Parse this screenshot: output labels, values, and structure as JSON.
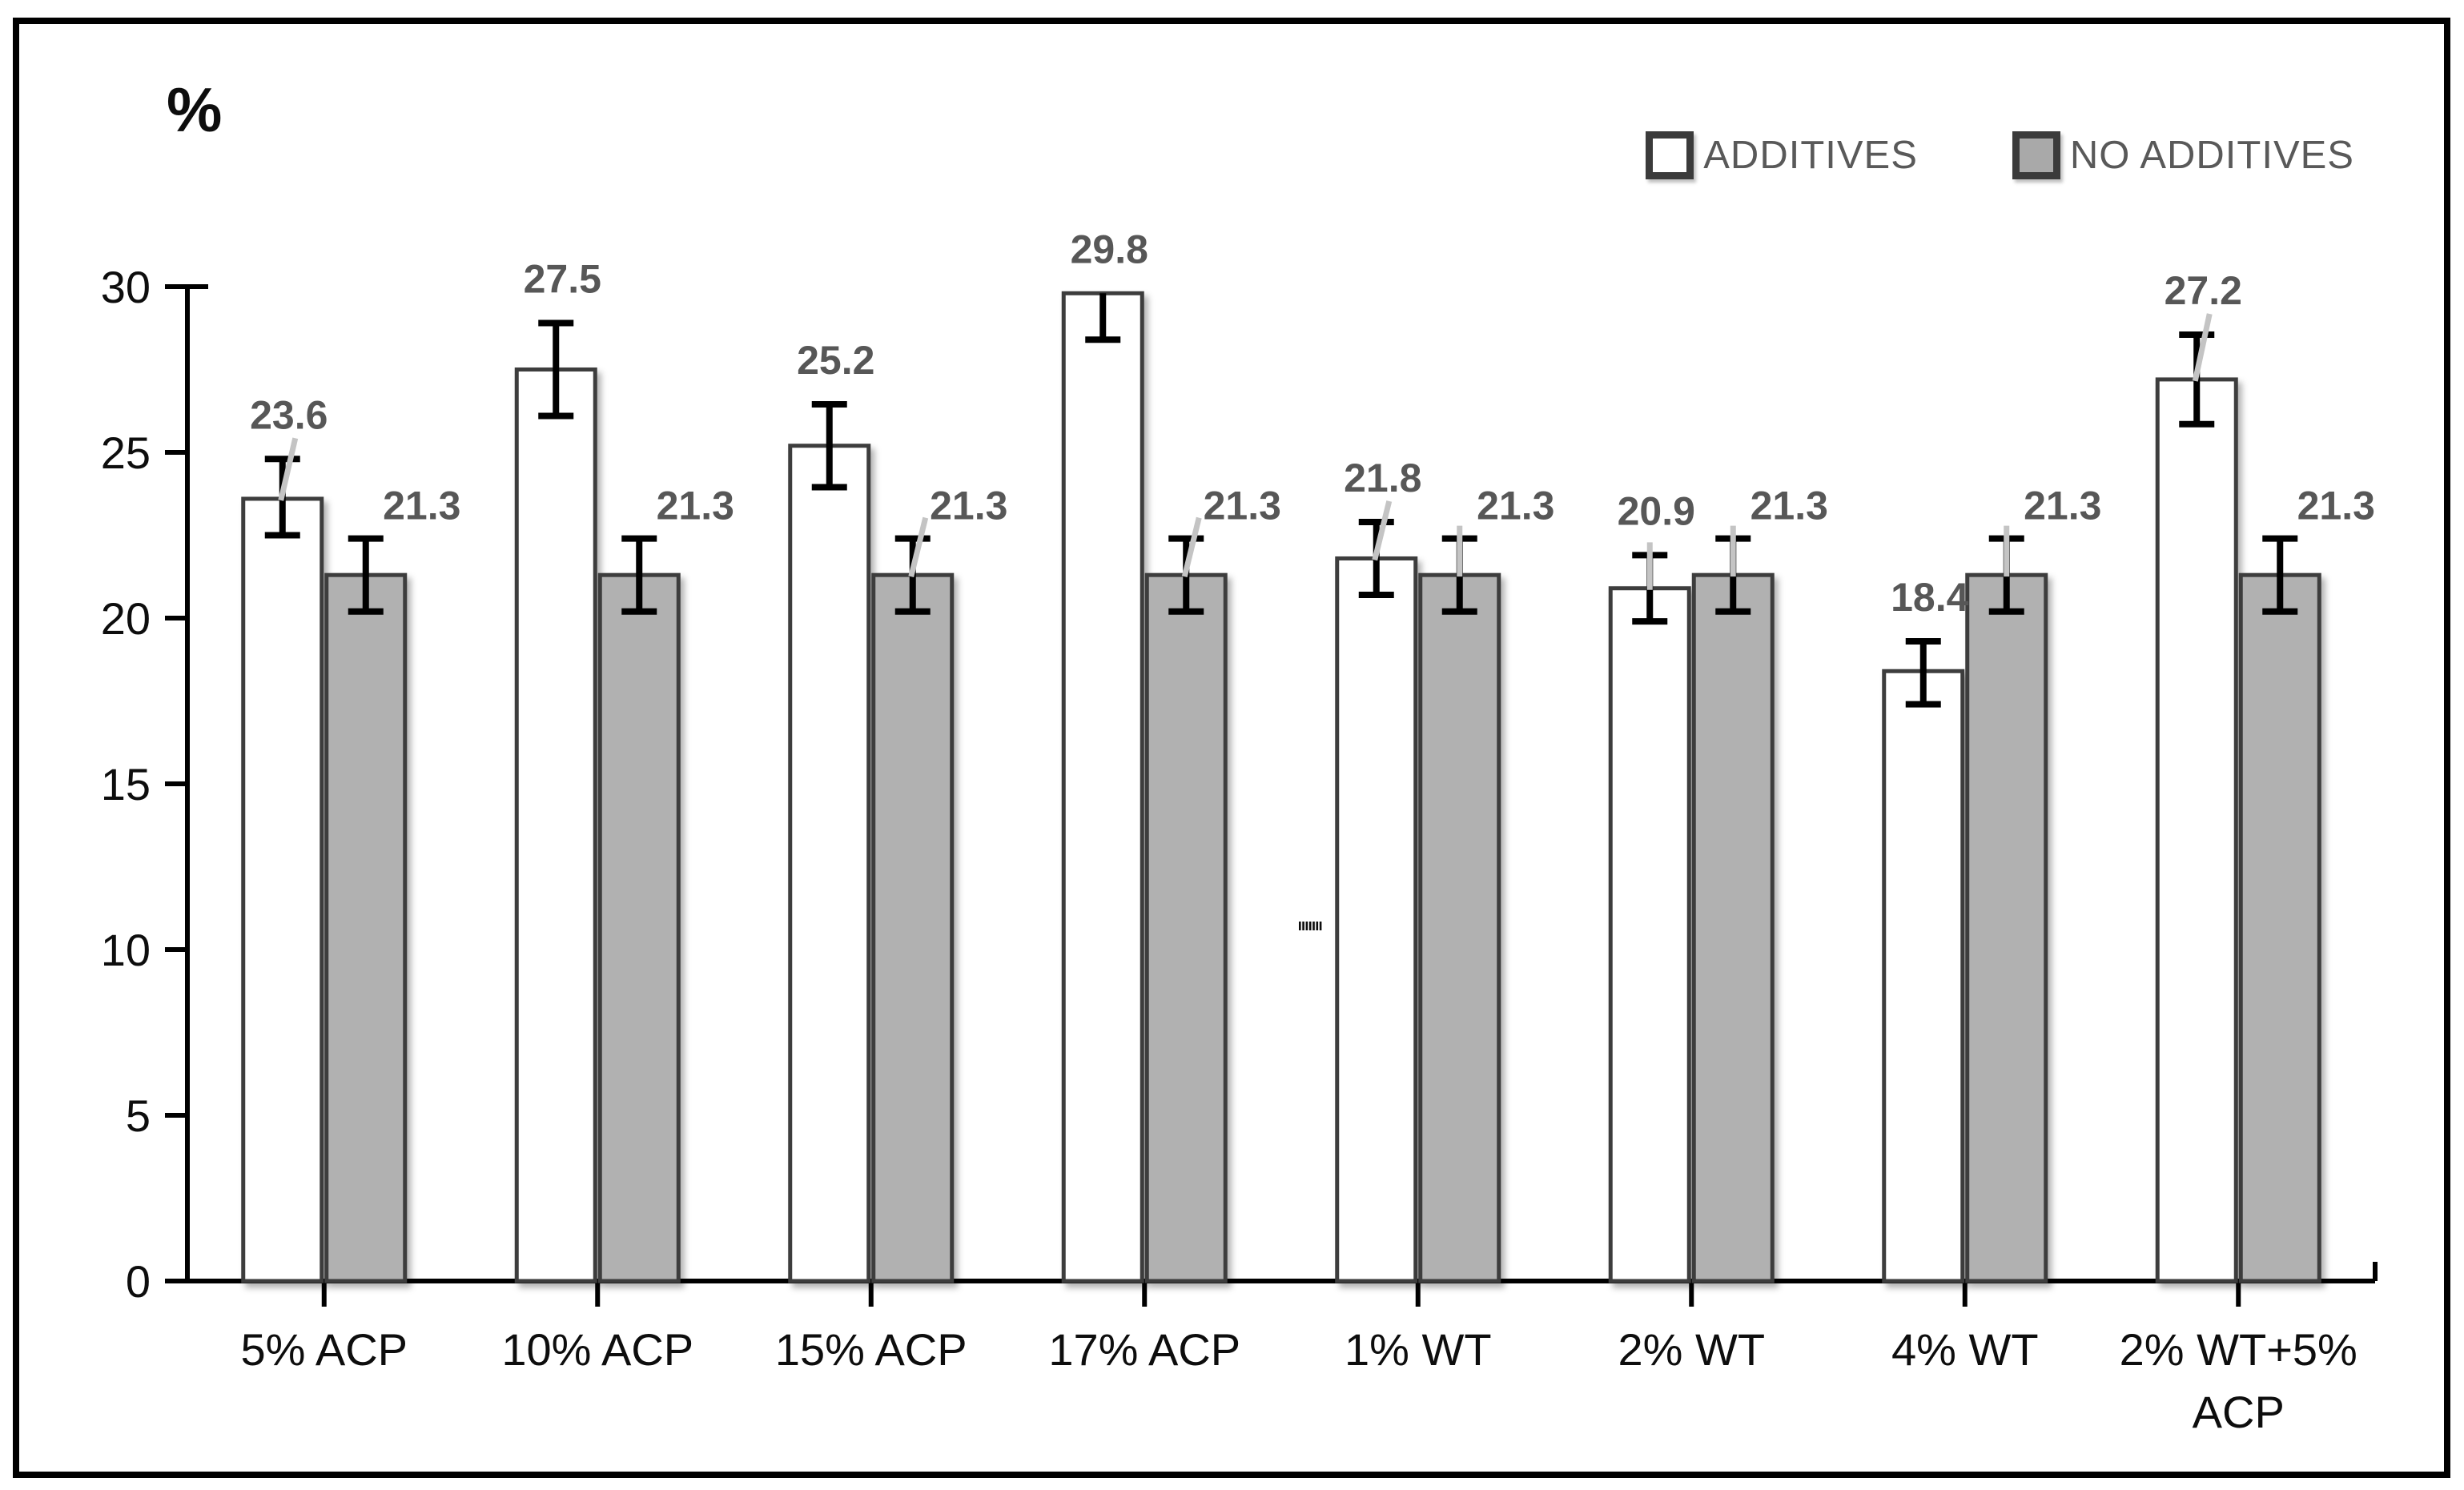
{
  "figure": {
    "y_axis_unit_label": "%",
    "border_color": "#000000"
  },
  "legend": {
    "items": [
      {
        "label": "ADDITIVES",
        "swatch_fill": "#ffffff"
      },
      {
        "label": "NO ADDITIVES",
        "swatch_fill": "#a9a9a9"
      }
    ]
  },
  "chart_data": {
    "type": "bar",
    "title": "",
    "xlabel": "",
    "ylabel": "%",
    "ylim": [
      0,
      30
    ],
    "yticks": [
      0,
      5,
      10,
      15,
      20,
      25,
      30
    ],
    "grid": false,
    "legend_position": "top-right",
    "categories": [
      "5% ACP",
      "10% ACP",
      "15% ACP",
      "17% ACP",
      "1% WT",
      "2% WT",
      "4% WT",
      "2% WT+5% ACP"
    ],
    "category_display_lines": [
      [
        "5% ACP"
      ],
      [
        "10% ACP"
      ],
      [
        "15% ACP"
      ],
      [
        "17% ACP"
      ],
      [
        "1% WT"
      ],
      [
        "2% WT"
      ],
      [
        "4% WT"
      ],
      [
        "2% WT+5%",
        "ACP"
      ]
    ],
    "series": [
      {
        "name": "ADDITIVES",
        "fill": "#ffffff",
        "values": [
          23.6,
          27.5,
          25.2,
          29.8,
          21.8,
          20.9,
          18.4,
          27.2
        ],
        "err_up": [
          1.2,
          1.4,
          1.25,
          0.0,
          1.1,
          1.0,
          0.9,
          1.35
        ],
        "err_down": [
          1.1,
          1.4,
          1.25,
          1.4,
          1.1,
          1.0,
          1.0,
          1.35
        ],
        "leaders": [
          "diag",
          "none",
          "none",
          "none",
          "diag",
          "vert",
          "none",
          "diag"
        ]
      },
      {
        "name": "NO ADDITIVES",
        "fill": "#b1b1b1",
        "values": [
          21.3,
          21.3,
          21.3,
          21.3,
          21.3,
          21.3,
          21.3,
          21.3
        ],
        "err_up": [
          1.1,
          1.1,
          1.1,
          1.1,
          1.1,
          1.1,
          1.1,
          1.1
        ],
        "err_down": [
          1.1,
          1.1,
          1.1,
          1.1,
          1.1,
          1.1,
          1.1,
          1.1
        ],
        "leaders": [
          "none",
          "none",
          "diag",
          "diag",
          "vert",
          "vert",
          "vert",
          "none"
        ]
      }
    ],
    "error_bar_color": "#000000",
    "data_label_color": "#575757",
    "leader_line_color": "#c4c4c4"
  },
  "artifact": {
    "description": "small stray dash marks left of 1% WT bar",
    "dash_count": 7
  }
}
